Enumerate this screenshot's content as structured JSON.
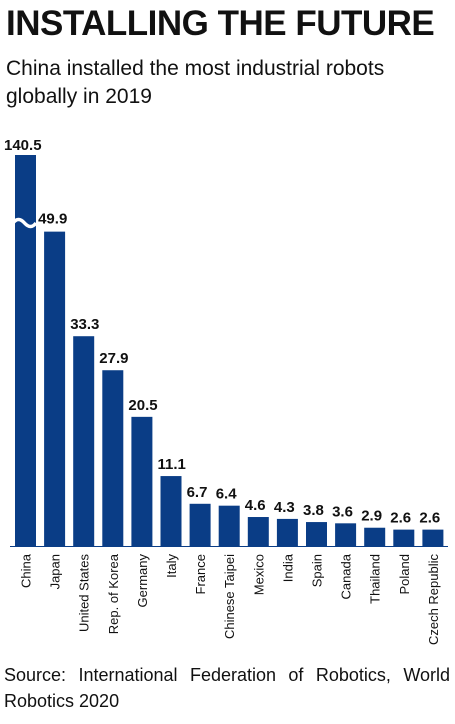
{
  "headline": "INSTALLING THE FUTURE",
  "subtitle": "China installed the most industrial robots globally in 2019",
  "source": "Source: International Federation of Robotics, World Robotics 2020",
  "colors": {
    "bar": "#0a3d86"
  },
  "chart_data": {
    "type": "bar",
    "categories": [
      "China",
      "Japan",
      "United States",
      "Rep. of Korea",
      "Germany",
      "Italy",
      "France",
      "Chinese Taipei",
      "Mexico",
      "India",
      "Spain",
      "Canada",
      "Thailand",
      "Poland",
      "Czech Republic"
    ],
    "values": [
      140.5,
      49.9,
      33.3,
      27.9,
      20.5,
      11.1,
      6.7,
      6.4,
      4.6,
      4.3,
      3.8,
      3.6,
      2.9,
      2.6,
      2.6
    ],
    "value_labels": [
      "140.5",
      "49.9",
      "33.3",
      "27.9",
      "20.5",
      "11.1",
      "6.7",
      "6.4",
      "4.6",
      "4.3",
      "3.8",
      "3.6",
      "2.9",
      "2.6",
      "2.6"
    ],
    "title": "",
    "xlabel": "",
    "ylabel": "",
    "axis_break": true,
    "grid": false,
    "legend": "none"
  }
}
